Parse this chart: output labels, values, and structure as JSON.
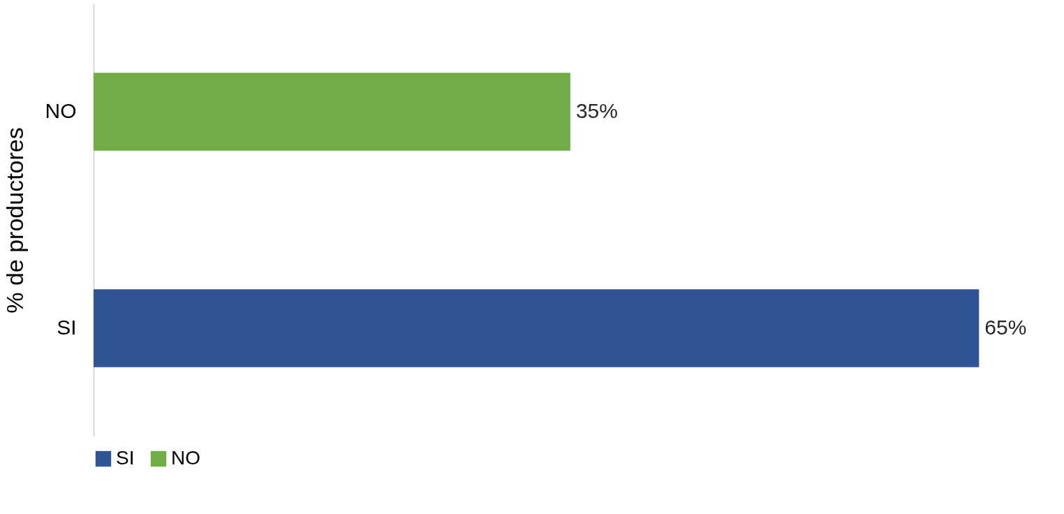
{
  "chart_data": {
    "type": "bar",
    "orientation": "horizontal",
    "ylabel": "% de productores",
    "categories": [
      "NO",
      "SI"
    ],
    "series": [
      {
        "name": "SI",
        "color": "#2f5597",
        "values": [
          null,
          65
        ],
        "value_labels": [
          null,
          "65%"
        ]
      },
      {
        "name": "NO",
        "color": "#70ad47",
        "values": [
          35,
          null
        ],
        "value_labels": [
          "35%",
          null
        ]
      }
    ],
    "legend": "bottom",
    "grid": false
  }
}
